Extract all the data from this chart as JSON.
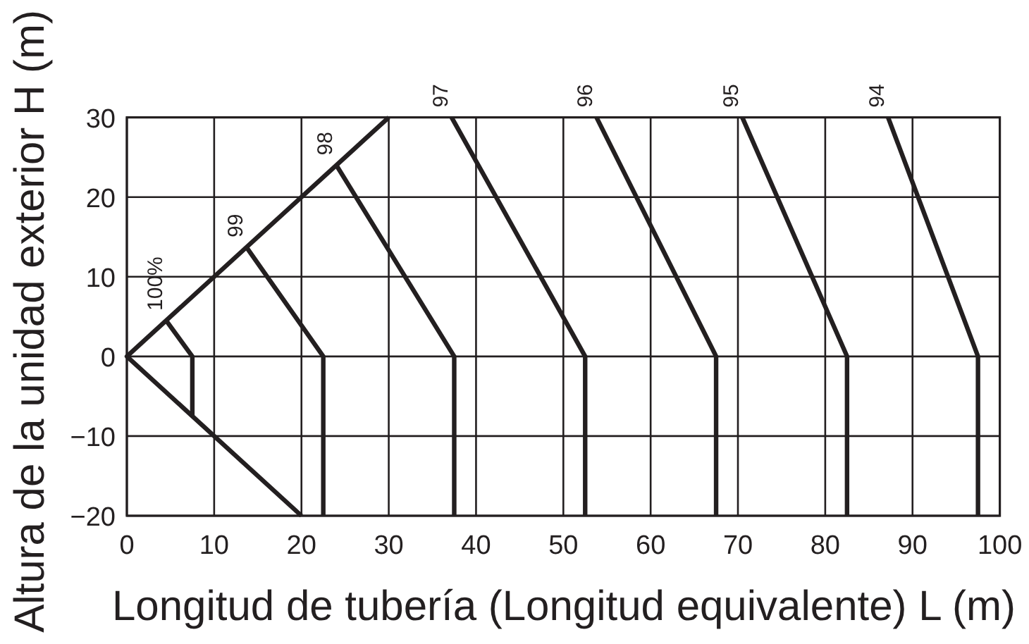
{
  "chart_data": {
    "type": "line",
    "xlabel": "Longitud de tubería (Longitud equivalente) L (m)",
    "ylabel": "Altura de la unidad exterior H (m)",
    "xlim": [
      0,
      100
    ],
    "xticks": [
      0,
      10,
      20,
      30,
      40,
      50,
      60,
      70,
      80,
      90,
      100
    ],
    "ylim": [
      -20,
      30
    ],
    "yticks": [
      {
        "value": -20,
        "label": "−20"
      },
      {
        "value": -10,
        "label": "−10"
      },
      0,
      10,
      20,
      30
    ],
    "grid": true,
    "series": [
      {
        "color": "#231f20",
        "x": [
          30,
          0,
          20
        ],
        "values": [
          30,
          0,
          -20
        ]
      },
      {
        "name": "100%",
        "color": "#231f20",
        "x": [
          4.5,
          7.5,
          7.5
        ],
        "values": [
          4.5,
          0,
          -7.5
        ]
      },
      {
        "name": "99",
        "color": "#231f20",
        "x": [
          13.7,
          22.5,
          22.5
        ],
        "values": [
          13.7,
          0,
          -20
        ]
      },
      {
        "name": "98",
        "color": "#231f20",
        "x": [
          24,
          37.5,
          37.5
        ],
        "values": [
          24,
          0,
          -20
        ]
      },
      {
        "name": "97",
        "color": "#231f20",
        "x": [
          37.2,
          52.5,
          52.5
        ],
        "values": [
          30,
          0,
          -20
        ]
      },
      {
        "name": "96",
        "color": "#231f20",
        "x": [
          53.8,
          67.5,
          67.5
        ],
        "values": [
          30,
          0,
          -20
        ]
      },
      {
        "name": "95",
        "color": "#231f20",
        "x": [
          70.5,
          82.5,
          82.5
        ],
        "values": [
          30,
          0,
          -20
        ]
      },
      {
        "name": "94",
        "color": "#231f20",
        "x": [
          87.2,
          97.5,
          97.5
        ],
        "values": [
          30,
          0,
          -20
        ]
      }
    ]
  }
}
